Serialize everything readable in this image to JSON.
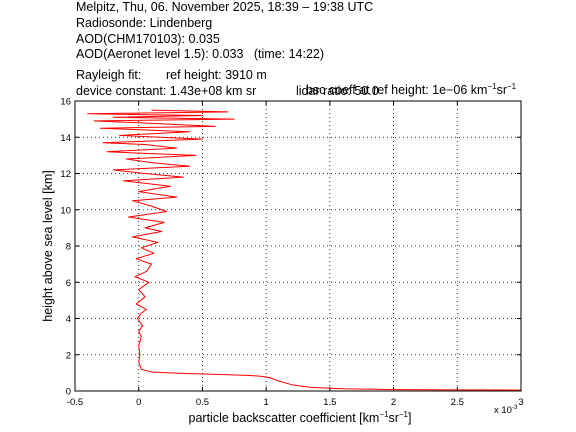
{
  "header": {
    "line1": "Melpitz, Thu, 06. November 2025, 18:39 – 19:38 UTC",
    "line2": "Radiosonde: Lindenberg",
    "line3": "AOD(CHM170103): 0.035",
    "line4": "AOD(Aeronet level 1.5): 0.033   (time: 14:22)",
    "rayleigh_label": "Rayleigh fit:",
    "ref_height": "ref height: 3910 m",
    "bsc_prefix": "bsc coeff at ref height: 1e−06 km",
    "bsc_exp1": "−1",
    "bsc_mid": "sr",
    "bsc_exp2": "−1",
    "device_constant": "device constant: 1.43e+08 km sr",
    "lidar_ratio": "lidar ratio: 50.0"
  },
  "chart_data": {
    "type": "line",
    "xlabel": "particle backscatter coefficient [km⁻¹sr⁻¹]",
    "ylabel": "height above sea level [km]",
    "x_multiplier_label": "x 10",
    "x_multiplier_exp": "-3",
    "xlim": [
      -0.5,
      3.0
    ],
    "ylim": [
      0,
      16
    ],
    "xticks": [
      -0.5,
      0,
      0.5,
      1,
      1.5,
      2,
      2.5,
      3
    ],
    "xtick_labels": [
      "-0.5",
      "0",
      "0.5",
      "1",
      "1.5",
      "2",
      "2.5",
      "3"
    ],
    "yticks": [
      0,
      2,
      4,
      6,
      8,
      10,
      12,
      14,
      16
    ],
    "ytick_labels": [
      "0",
      "2",
      "4",
      "6",
      "8",
      "10",
      "12",
      "14",
      "16"
    ],
    "grid": true,
    "series": [
      {
        "color": "#ff0000",
        "x": [
          3.0,
          2.5,
          2.0,
          1.6,
          1.35,
          1.2,
          1.1,
          1.02,
          0.95,
          0.85,
          0.7,
          0.55,
          0.4,
          0.25,
          0.1,
          0.02,
          0.0,
          0.01,
          0.0,
          0.02,
          0.0,
          0.03,
          -0.01,
          0.02,
          0.06,
          -0.02,
          0.05,
          0.0,
          0.08,
          -0.03,
          0.06,
          0.1,
          -0.02,
          0.12,
          0.02,
          0.15,
          -0.05,
          0.18,
          0.05,
          0.2,
          -0.08,
          0.22,
          0.1,
          -0.05,
          0.3,
          0.0,
          0.25,
          -0.12,
          0.35,
          0.05,
          -0.2,
          0.4,
          0.1,
          -0.1,
          0.45,
          -0.25,
          0.3,
          0.05,
          -0.28,
          0.5,
          -0.15,
          0.4,
          -0.3,
          0.6,
          0.0,
          -0.35,
          0.75,
          -0.2,
          0.5,
          -0.4,
          0.7,
          0.1
        ],
        "y": [
          0.05,
          0.06,
          0.08,
          0.12,
          0.2,
          0.35,
          0.55,
          0.75,
          0.82,
          0.86,
          0.9,
          0.93,
          0.96,
          1.0,
          1.05,
          1.2,
          1.6,
          2.0,
          2.5,
          3.0,
          3.3,
          3.6,
          4.0,
          4.3,
          4.5,
          4.8,
          5.2,
          5.6,
          6.0,
          6.3,
          6.6,
          7.0,
          7.3,
          7.6,
          7.9,
          8.2,
          8.5,
          8.8,
          9.0,
          9.3,
          9.6,
          9.9,
          10.2,
          10.5,
          10.7,
          11.0,
          11.3,
          11.6,
          11.8,
          12.0,
          12.2,
          12.4,
          12.6,
          12.8,
          13.0,
          13.2,
          13.4,
          13.6,
          13.7,
          13.9,
          14.1,
          14.3,
          14.5,
          14.6,
          14.8,
          14.9,
          15.0,
          15.1,
          15.2,
          15.3,
          15.4,
          15.5
        ]
      }
    ]
  }
}
